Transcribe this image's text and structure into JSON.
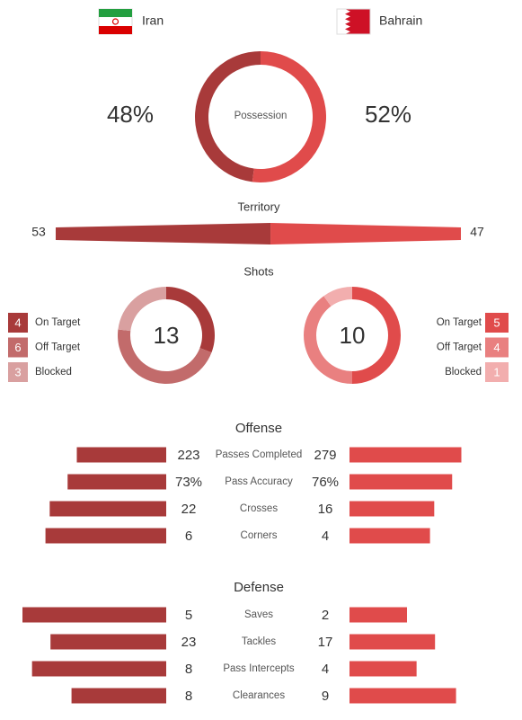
{
  "home": {
    "name": "Iran",
    "color": "#a83a3a"
  },
  "away": {
    "name": "Bahrain",
    "color": "#e04b4b"
  },
  "possession": {
    "label": "Possession",
    "home": {
      "value": 48,
      "label": "48%"
    },
    "away": {
      "value": 52,
      "label": "52%"
    }
  },
  "territory": {
    "label": "Territory",
    "home": 53,
    "away": 47
  },
  "shots": {
    "label": "Shots",
    "home": {
      "total": 13,
      "breakdown": [
        {
          "name": "On Target",
          "value": 4,
          "color": "#a83a3a"
        },
        {
          "name": "Off Target",
          "value": 6,
          "color": "#c26b6b"
        },
        {
          "name": "Blocked",
          "value": 3,
          "color": "#d9a0a0"
        }
      ]
    },
    "away": {
      "total": 10,
      "breakdown": [
        {
          "name": "On Target",
          "value": 5,
          "color": "#e04b4b"
        },
        {
          "name": "Off Target",
          "value": 4,
          "color": "#e98080"
        },
        {
          "name": "Blocked",
          "value": 1,
          "color": "#f2aeae"
        }
      ]
    }
  },
  "offense": {
    "label": "Offense",
    "rows": [
      {
        "name": "Passes Completed",
        "home": 223,
        "away": 279
      },
      {
        "name": "Pass Accuracy",
        "home": {
          "value": 73,
          "label": "73%"
        },
        "away": {
          "value": 76,
          "label": "76%"
        }
      },
      {
        "name": "Crosses",
        "home": 22,
        "away": 16
      },
      {
        "name": "Corners",
        "home": 6,
        "away": 4
      }
    ]
  },
  "defense": {
    "label": "Defense",
    "rows": [
      {
        "name": "Saves",
        "home": 5,
        "away": 2
      },
      {
        "name": "Tackles",
        "home": 23,
        "away": 17
      },
      {
        "name": "Pass Intercepts",
        "home": 8,
        "away": 4
      },
      {
        "name": "Clearances",
        "home": 8,
        "away": 9
      }
    ]
  }
}
